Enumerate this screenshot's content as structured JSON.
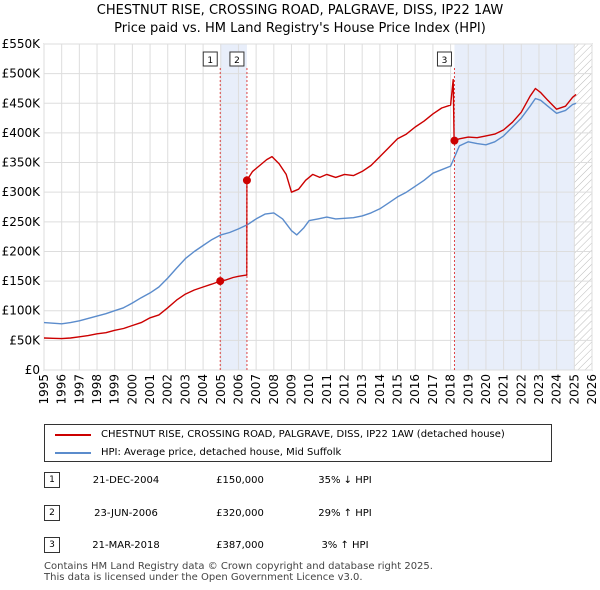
{
  "title": {
    "line1": "CHESTNUT RISE, CROSSING ROAD, PALGRAVE, DISS, IP22 1AW",
    "line2": "Price paid vs. HM Land Registry's House Price Index (HPI)"
  },
  "chart_data": {
    "type": "line",
    "title": "CHESTNUT RISE, CROSSING ROAD, PALGRAVE, DISS, IP22 1AW",
    "subtitle": "Price paid vs. HM Land Registry's House Price Index (HPI)",
    "xlim": [
      1995,
      2026
    ],
    "ylim": [
      0,
      550000
    ],
    "x_ticks": [
      1995,
      1996,
      1997,
      1998,
      1999,
      2000,
      2001,
      2002,
      2003,
      2004,
      2005,
      2006,
      2007,
      2008,
      2009,
      2010,
      2011,
      2012,
      2013,
      2014,
      2015,
      2016,
      2017,
      2018,
      2019,
      2020,
      2021,
      2022,
      2023,
      2024,
      2025,
      2026
    ],
    "y_ticks": [
      {
        "value": 0,
        "label": "£0"
      },
      {
        "value": 50000,
        "label": "£50K"
      },
      {
        "value": 100000,
        "label": "£100K"
      },
      {
        "value": 150000,
        "label": "£150K"
      },
      {
        "value": 200000,
        "label": "£200K"
      },
      {
        "value": 250000,
        "label": "£250K"
      },
      {
        "value": 300000,
        "label": "£300K"
      },
      {
        "value": 350000,
        "label": "£350K"
      },
      {
        "value": 400000,
        "label": "£400K"
      },
      {
        "value": 450000,
        "label": "£450K"
      },
      {
        "value": 500000,
        "label": "£500K"
      },
      {
        "value": 550000,
        "label": "£550K"
      }
    ],
    "grid": true,
    "series": [
      {
        "name": "CHESTNUT RISE, CROSSING ROAD, PALGRAVE, DISS, IP22 1AW (detached house)",
        "color": "#cc0000",
        "points": [
          [
            1995.0,
            54000
          ],
          [
            1995.5,
            53500
          ],
          [
            1996.0,
            53000
          ],
          [
            1996.5,
            54000
          ],
          [
            1997.0,
            56000
          ],
          [
            1997.5,
            58000
          ],
          [
            1998.0,
            61000
          ],
          [
            1998.5,
            63000
          ],
          [
            1999.0,
            67000
          ],
          [
            1999.5,
            70000
          ],
          [
            2000.0,
            75000
          ],
          [
            2000.5,
            80000
          ],
          [
            2001.0,
            88000
          ],
          [
            2001.5,
            93000
          ],
          [
            2002.0,
            105000
          ],
          [
            2002.5,
            118000
          ],
          [
            2003.0,
            128000
          ],
          [
            2003.5,
            135000
          ],
          [
            2004.0,
            140000
          ],
          [
            2004.5,
            145000
          ],
          [
            2004.97,
            150000
          ],
          [
            2005.3,
            152000
          ],
          [
            2005.7,
            156000
          ],
          [
            2006.0,
            158000
          ],
          [
            2006.4,
            160000
          ],
          [
            2006.47,
            160000
          ],
          [
            2006.48,
            320000
          ],
          [
            2006.8,
            335000
          ],
          [
            2007.2,
            345000
          ],
          [
            2007.6,
            355000
          ],
          [
            2007.9,
            360000
          ],
          [
            2008.3,
            348000
          ],
          [
            2008.7,
            330000
          ],
          [
            2009.0,
            300000
          ],
          [
            2009.4,
            305000
          ],
          [
            2009.8,
            320000
          ],
          [
            2010.2,
            330000
          ],
          [
            2010.6,
            325000
          ],
          [
            2011.0,
            330000
          ],
          [
            2011.5,
            325000
          ],
          [
            2012.0,
            330000
          ],
          [
            2012.5,
            328000
          ],
          [
            2013.0,
            335000
          ],
          [
            2013.5,
            345000
          ],
          [
            2014.0,
            360000
          ],
          [
            2014.5,
            375000
          ],
          [
            2015.0,
            390000
          ],
          [
            2015.5,
            398000
          ],
          [
            2016.0,
            410000
          ],
          [
            2016.5,
            420000
          ],
          [
            2017.0,
            432000
          ],
          [
            2017.5,
            442000
          ],
          [
            2018.0,
            447000
          ],
          [
            2018.15,
            490000
          ],
          [
            2018.2,
            387000
          ],
          [
            2018.5,
            390000
          ],
          [
            2019.0,
            393000
          ],
          [
            2019.5,
            392000
          ],
          [
            2020.0,
            395000
          ],
          [
            2020.5,
            398000
          ],
          [
            2021.0,
            405000
          ],
          [
            2021.5,
            418000
          ],
          [
            2022.0,
            435000
          ],
          [
            2022.5,
            462000
          ],
          [
            2022.8,
            475000
          ],
          [
            2023.1,
            468000
          ],
          [
            2023.5,
            455000
          ],
          [
            2024.0,
            440000
          ],
          [
            2024.5,
            445000
          ],
          [
            2024.9,
            460000
          ],
          [
            2025.1,
            465000
          ]
        ]
      },
      {
        "name": "HPI: Average price, detached house, Mid Suffolk",
        "color": "#5b8ccc",
        "points": [
          [
            1995.0,
            80000
          ],
          [
            1995.5,
            79000
          ],
          [
            1996.0,
            78000
          ],
          [
            1996.5,
            80000
          ],
          [
            1997.0,
            83000
          ],
          [
            1997.5,
            87000
          ],
          [
            1998.0,
            91000
          ],
          [
            1998.5,
            95000
          ],
          [
            1999.0,
            100000
          ],
          [
            1999.5,
            105000
          ],
          [
            2000.0,
            113000
          ],
          [
            2000.5,
            122000
          ],
          [
            2001.0,
            130000
          ],
          [
            2001.5,
            140000
          ],
          [
            2002.0,
            155000
          ],
          [
            2002.5,
            172000
          ],
          [
            2003.0,
            188000
          ],
          [
            2003.5,
            200000
          ],
          [
            2004.0,
            210000
          ],
          [
            2004.5,
            220000
          ],
          [
            2005.0,
            228000
          ],
          [
            2005.5,
            232000
          ],
          [
            2006.0,
            238000
          ],
          [
            2006.5,
            245000
          ],
          [
            2007.0,
            255000
          ],
          [
            2007.5,
            263000
          ],
          [
            2008.0,
            265000
          ],
          [
            2008.5,
            255000
          ],
          [
            2009.0,
            235000
          ],
          [
            2009.3,
            228000
          ],
          [
            2009.7,
            240000
          ],
          [
            2010.0,
            252000
          ],
          [
            2010.5,
            255000
          ],
          [
            2011.0,
            258000
          ],
          [
            2011.5,
            255000
          ],
          [
            2012.0,
            256000
          ],
          [
            2012.5,
            257000
          ],
          [
            2013.0,
            260000
          ],
          [
            2013.5,
            265000
          ],
          [
            2014.0,
            272000
          ],
          [
            2014.5,
            282000
          ],
          [
            2015.0,
            292000
          ],
          [
            2015.5,
            300000
          ],
          [
            2016.0,
            310000
          ],
          [
            2016.5,
            320000
          ],
          [
            2017.0,
            332000
          ],
          [
            2017.5,
            338000
          ],
          [
            2018.0,
            344000
          ],
          [
            2018.5,
            378000
          ],
          [
            2019.0,
            385000
          ],
          [
            2019.5,
            382000
          ],
          [
            2020.0,
            380000
          ],
          [
            2020.5,
            385000
          ],
          [
            2021.0,
            395000
          ],
          [
            2021.5,
            410000
          ],
          [
            2022.0,
            425000
          ],
          [
            2022.5,
            445000
          ],
          [
            2022.8,
            458000
          ],
          [
            2023.1,
            455000
          ],
          [
            2023.5,
            445000
          ],
          [
            2024.0,
            433000
          ],
          [
            2024.5,
            438000
          ],
          [
            2024.9,
            448000
          ],
          [
            2025.1,
            450000
          ]
        ]
      }
    ],
    "sales": [
      {
        "id": "1",
        "x": 2004.97,
        "y": 150000
      },
      {
        "id": "2",
        "x": 2006.48,
        "y": 320000
      },
      {
        "id": "3",
        "x": 2018.22,
        "y": 387000
      }
    ],
    "shaded_periods": [
      [
        2004.97,
        2006.48
      ],
      [
        2018.22,
        2025.0
      ]
    ],
    "hatched_from": 2025.0
  },
  "legend": {
    "items": [
      {
        "label": "CHESTNUT RISE, CROSSING ROAD, PALGRAVE, DISS, IP22 1AW (detached house)",
        "color": "#cc0000"
      },
      {
        "label": "HPI: Average price, detached house, Mid Suffolk",
        "color": "#5b8ccc"
      }
    ]
  },
  "transactions": [
    {
      "num": "1",
      "date": "21-DEC-2004",
      "price": "£150,000",
      "hpi": "35% ↓ HPI"
    },
    {
      "num": "2",
      "date": "23-JUN-2006",
      "price": "£320,000",
      "hpi": "29% ↑ HPI"
    },
    {
      "num": "3",
      "date": "21-MAR-2018",
      "price": "£387,000",
      "hpi": "3% ↑ HPI"
    }
  ],
  "footer": {
    "line1": "Contains HM Land Registry data © Crown copyright and database right 2025.",
    "line2": "This data is licensed under the Open Government Licence v3.0."
  }
}
